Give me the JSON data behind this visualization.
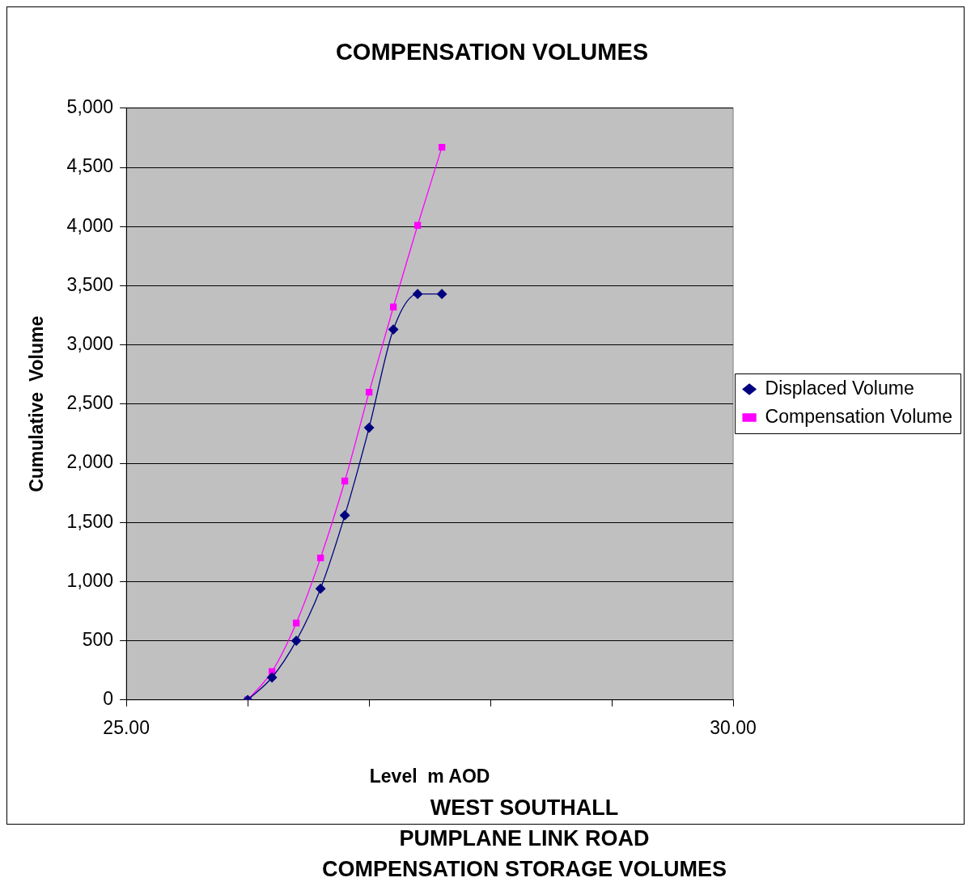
{
  "chart_data": {
    "type": "line",
    "title": "COMPENSATION VOLUMES",
    "xlabel": "Level  m AOD",
    "ylabel": "Cumulative  Volume",
    "x": [
      26.0,
      26.2,
      26.4,
      26.6,
      26.8,
      27.0,
      27.2,
      27.4,
      27.6
    ],
    "series": [
      {
        "name": "Displaced Volume",
        "color": "#000080",
        "marker": "diamond",
        "values": [
          0,
          190,
          500,
          940,
          1560,
          2300,
          3130,
          3430,
          3430
        ]
      },
      {
        "name": "Compensation Volume",
        "color": "#ff00ff",
        "marker": "square",
        "values": [
          0,
          240,
          650,
          1200,
          1850,
          2600,
          3320,
          4010,
          4670
        ]
      }
    ],
    "xlim": [
      25,
      30
    ],
    "xticks": [
      {
        "value": 25,
        "label": "25.00"
      },
      {
        "value": 26,
        "label": null
      },
      {
        "value": 27,
        "label": null
      },
      {
        "value": 28,
        "label": null
      },
      {
        "value": 29,
        "label": null
      },
      {
        "value": 30,
        "label": "30.00"
      }
    ],
    "ylim": [
      0,
      5000
    ],
    "yticks": [
      0,
      500,
      {
        "value": 1000,
        "label": "1,000"
      },
      {
        "value": 1500,
        "label": "1,500"
      },
      {
        "value": 2000,
        "label": "2,000"
      },
      {
        "value": 2500,
        "label": "2,500"
      },
      {
        "value": 3000,
        "label": "3,000"
      },
      {
        "value": 3500,
        "label": "3,500"
      },
      {
        "value": 4000,
        "label": "4,000"
      },
      {
        "value": 4500,
        "label": "4,500"
      },
      {
        "value": 5000,
        "label": "5,000"
      }
    ],
    "grid": "y",
    "legend": "right",
    "annotations": [
      "WEST SOUTHALL",
      "PUMPLANE LINK ROAD",
      "COMPENSATION STORAGE VOLUMES"
    ]
  }
}
